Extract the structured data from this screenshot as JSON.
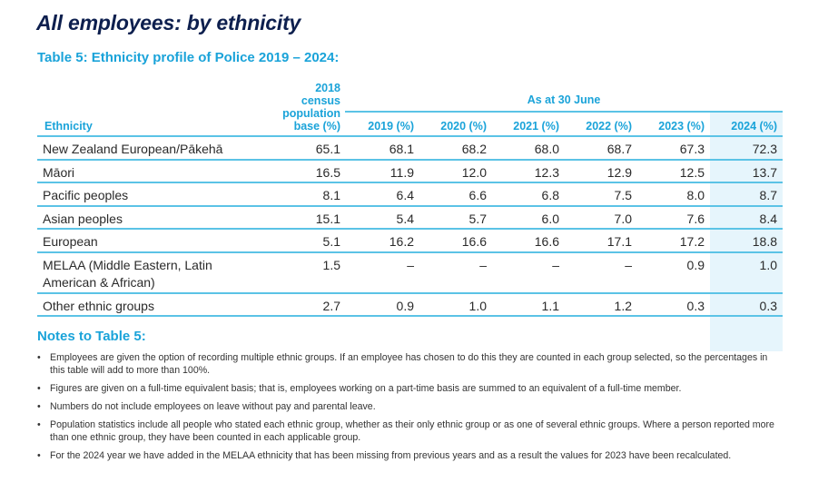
{
  "page_title": "All employees: by ethnicity",
  "table_title": "Table 5: Ethnicity profile of Police 2019 – 2024:",
  "table": {
    "group_header": "As at 30 June",
    "columns": [
      {
        "label": "Ethnicity"
      },
      {
        "label": "2018 census population base (%)",
        "lines": [
          "2018",
          "census",
          "population",
          "base (%)"
        ]
      },
      {
        "label": "2019 (%)"
      },
      {
        "label": "2020 (%)"
      },
      {
        "label": "2021 (%)"
      },
      {
        "label": "2022 (%)"
      },
      {
        "label": "2023 (%)"
      },
      {
        "label": "2024 (%)"
      }
    ],
    "highlighted_column": "2024 (%)",
    "rows": [
      {
        "name": "New Zealand European/Pākehā",
        "values": [
          "65.1",
          "68.1",
          "68.2",
          "68.0",
          "68.7",
          "67.3",
          "72.3"
        ]
      },
      {
        "name": "Māori",
        "values": [
          "16.5",
          "11.9",
          "12.0",
          "12.3",
          "12.9",
          "12.5",
          "13.7"
        ]
      },
      {
        "name": "Pacific peoples",
        "values": [
          "8.1",
          "6.4",
          "6.6",
          "6.8",
          "7.5",
          "8.0",
          "8.7"
        ]
      },
      {
        "name": "Asian peoples",
        "values": [
          "15.1",
          "5.4",
          "5.7",
          "6.0",
          "7.0",
          "7.6",
          "8.4"
        ]
      },
      {
        "name": "European",
        "values": [
          "5.1",
          "16.2",
          "16.6",
          "16.6",
          "17.1",
          "17.2",
          "18.8"
        ]
      },
      {
        "name": "MELAA (Middle Eastern, Latin American & African)",
        "values": [
          "1.5",
          "–",
          "–",
          "–",
          "–",
          "0.9",
          "1.0"
        ]
      },
      {
        "name": "Other ethnic groups",
        "values": [
          "2.7",
          "0.9",
          "1.0",
          "1.1",
          "1.2",
          "0.3",
          "0.3"
        ]
      }
    ]
  },
  "notes": {
    "title": "Notes to Table 5:",
    "bullet": "•",
    "items": [
      "Employees are given the option of recording multiple ethnic groups. If an employee has chosen to do this they are counted in each group selected, so the percentages in this table will add to more than 100%.",
      "Figures are given on a full-time equivalent basis; that is, employees working on a part-time basis are summed to an equivalent of a full-time member.",
      "Numbers do not include employees on leave without pay and parental leave.",
      "Population statistics include all people who stated each ethnic group, whether as their only ethnic group or as one of several ethnic groups. Where a person reported more than one ethnic group, they have been counted in each applicable group.",
      "For the 2024 year we have added in the MELAA ethnicity that has been missing from previous years and as a result the values for 2023 have been recalculated."
    ]
  },
  "colors": {
    "title": "#0d1f4e",
    "accent": "#1aa3d9",
    "rule": "#5bc3e6",
    "highlight": "#e6f5fc"
  }
}
